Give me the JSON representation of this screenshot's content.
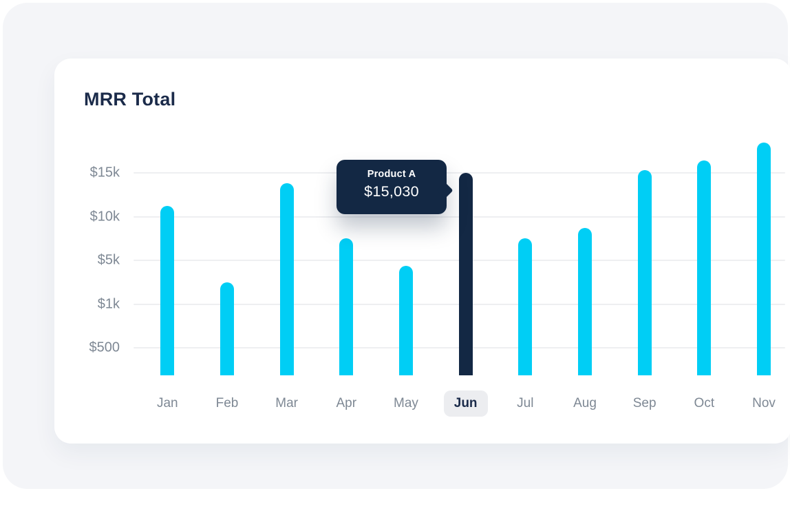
{
  "chart_data": {
    "type": "bar",
    "title": "MRR Total",
    "series_name": "Product A",
    "categories": [
      "Jan",
      "Feb",
      "Mar",
      "Apr",
      "May",
      "Jun",
      "Jul",
      "Aug",
      "Sep",
      "Oct",
      "Nov"
    ],
    "values": [
      11200,
      3000,
      13800,
      7500,
      4500,
      15030,
      7500,
      8700,
      15300,
      16400,
      18500
    ],
    "highlighted_index": 5,
    "highlighted_category": "Jun",
    "xlabel": "",
    "ylabel": "",
    "y_axis": {
      "tick_labels": [
        "$500",
        "$1k",
        "$5k",
        "$10k",
        "$15k"
      ],
      "tick_values": [
        500,
        1000,
        5000,
        10000,
        15000
      ],
      "scale": "non-linear, ticks evenly spaced"
    },
    "grid": true,
    "legend": false
  },
  "tooltip": {
    "title": "Product A",
    "value": "$15,030",
    "target_category": "Jun"
  },
  "colors": {
    "bar": "#00CEF5",
    "bar_highlight": "#132844",
    "tooltip_bg": "#132844",
    "title_text": "#1B2B4A",
    "axis_text": "#7E8894",
    "grid_line": "#EEEFF1",
    "panel_bg": "#F4F5F8",
    "card_bg": "#FFFFFF",
    "active_month_pill_bg": "#ECEDF0",
    "active_month_text": "#1B2B4A"
  }
}
